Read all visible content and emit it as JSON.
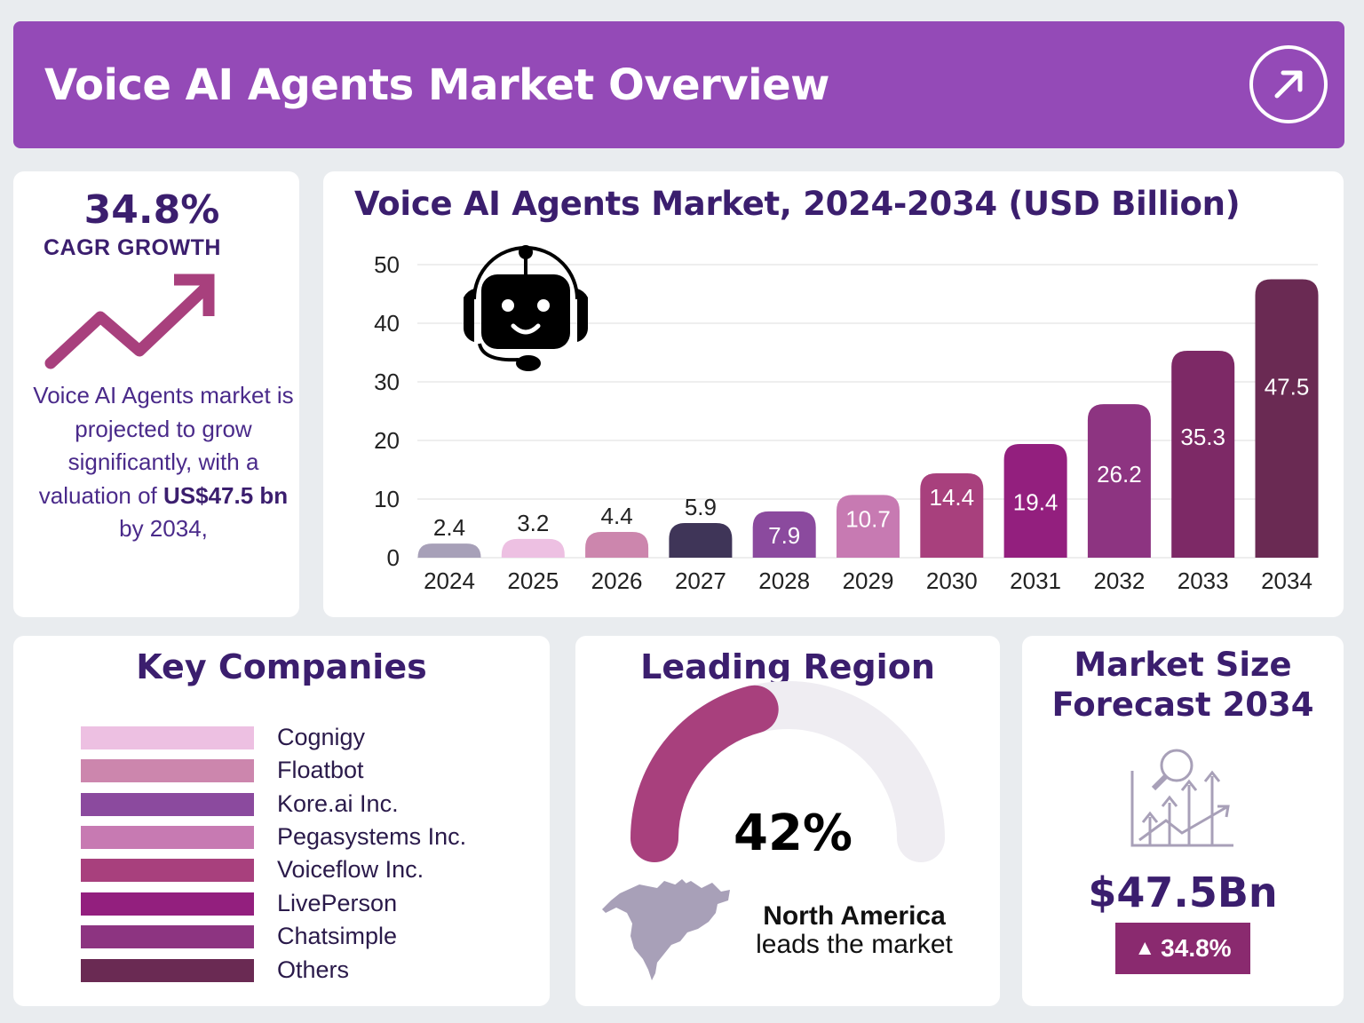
{
  "header": {
    "title": "Voice AI Agents Market Overview",
    "action_icon": "arrow-up-right-icon"
  },
  "cagr": {
    "value": "34.8%",
    "label": "CAGR GROWTH",
    "desc_part1": "Voice AI Agents market is projected to grow significantly, with a valuation of ",
    "desc_bold": "US$47.5 bn",
    "desc_part2": " by 2034,"
  },
  "chart_data": {
    "type": "bar",
    "title": "Voice AI Agents Market, 2024-2034 (USD Billion)",
    "categories": [
      "2024",
      "2025",
      "2026",
      "2027",
      "2028",
      "2029",
      "2030",
      "2031",
      "2032",
      "2033",
      "2034"
    ],
    "values": [
      2.4,
      3.2,
      4.4,
      5.9,
      7.9,
      10.7,
      14.4,
      19.4,
      26.2,
      35.3,
      47.5
    ],
    "labels": [
      "2.4",
      "3.2",
      "4.4",
      "5.9",
      "7.9",
      "10.7",
      "14.4",
      "19.4",
      "26.2",
      "35.3",
      "47.5"
    ],
    "colors": [
      "#a7a0b8",
      "#edc0e2",
      "#cc86ad",
      "#3f3558",
      "#8b4a9e",
      "#c77ab2",
      "#a8407d",
      "#931f7e",
      "#8d3481",
      "#7d2966",
      "#6a2a53"
    ],
    "yticks": [
      "0",
      "10",
      "20",
      "30",
      "40",
      "50"
    ],
    "ylim": [
      0,
      50
    ],
    "xlabel": "",
    "ylabel": "",
    "grid": true
  },
  "companies": {
    "title": "Key Companies",
    "items": [
      {
        "name": "Cognigy",
        "color": "#edc0e2"
      },
      {
        "name": "Floatbot",
        "color": "#cc86ad"
      },
      {
        "name": "Kore.ai Inc.",
        "color": "#8b4a9e"
      },
      {
        "name": "Pegasystems Inc.",
        "color": "#c77ab2"
      },
      {
        "name": "Voiceflow Inc.",
        "color": "#a8407d"
      },
      {
        "name": "LivePerson",
        "color": "#931f7e"
      },
      {
        "name": "Chatsimple",
        "color": "#8d3481"
      },
      {
        "name": "Others",
        "color": "#6a2a53"
      }
    ]
  },
  "region": {
    "title": "Leading Region",
    "share_value": 42,
    "share_label": "42%",
    "name": "North America",
    "subtitle": "leads the market"
  },
  "market_size": {
    "title_line1": "Market Size",
    "title_line2": "Forecast 2034",
    "value": "$47.5Bn",
    "growth": "34.8%"
  }
}
